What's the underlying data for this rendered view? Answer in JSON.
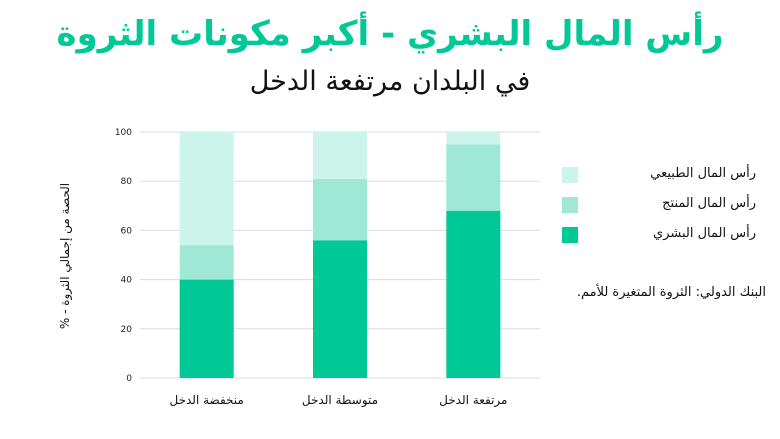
{
  "title": "رأس المال البشري - أكبر مكونات الثروة",
  "subtitle": "في البلدان مرتفعة الدخل",
  "source": "البنك الدولي: الثروة المتغيرة للأمم.",
  "colors": {
    "human": "#00c896",
    "produced": "#9ee8d5",
    "natural": "#cdf4ea"
  },
  "chart_data": {
    "type": "bar",
    "stacked": true,
    "title": "رأس المال البشري - أكبر مكونات الثروة",
    "subtitle": "في البلدان مرتفعة الدخل",
    "ylabel": "الحصة من إجمالي الثروة - %",
    "xlabel": "",
    "ylim": [
      0,
      100
    ],
    "yticks": [
      0,
      20,
      40,
      60,
      80,
      100
    ],
    "grid": true,
    "legend_position": "right",
    "categories": [
      "منخفضة الدخل",
      "متوسطة الدخل",
      "مرتفعة الدخل"
    ],
    "series": [
      {
        "name": "رأس المال البشري",
        "color": "#00c896",
        "values": [
          40,
          56,
          68
        ]
      },
      {
        "name": "رأس المال المنتج",
        "color": "#9ee8d5",
        "values": [
          14,
          25,
          27
        ]
      },
      {
        "name": "رأس المال الطبيعي",
        "color": "#cdf4ea",
        "values": [
          46,
          19,
          5
        ]
      }
    ]
  }
}
